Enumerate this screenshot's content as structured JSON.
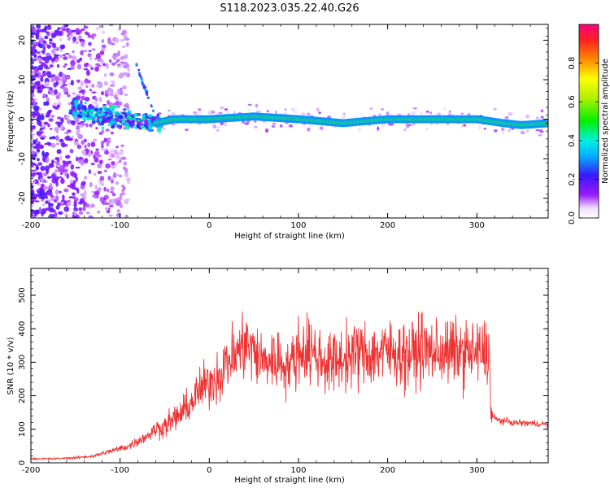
{
  "title": "S118.2023.035.22.40.G26",
  "chart_data": [
    {
      "type": "heatmap",
      "xlabel": "Height of straight line (km)",
      "ylabel": "Frequency (Hz)",
      "xlim": [
        -200,
        380
      ],
      "ylim": [
        -25,
        24
      ],
      "x_ticks": [
        -200,
        -100,
        0,
        100,
        200,
        300
      ],
      "y_ticks": [
        -20,
        -10,
        0,
        10,
        20
      ],
      "colorbar": {
        "label": "Normalized spectral amplitude",
        "range": [
          0.0,
          1.0
        ],
        "ticks": [
          0.0,
          0.2,
          0.4,
          0.6,
          0.8
        ],
        "tick_labels": [
          "0.0",
          "0.2",
          "0.4",
          "0.6",
          "0.8"
        ]
      },
      "ridge": {
        "x": [
          -150,
          -100,
          -60,
          -40,
          0,
          50,
          100,
          150,
          200,
          250,
          300,
          330,
          350,
          380
        ],
        "freq": [
          2.5,
          0.0,
          -1.0,
          0.0,
          0.0,
          0.7,
          0.0,
          -1.0,
          0.0,
          0.0,
          0.0,
          -1.0,
          -1.5,
          -1.0
        ]
      }
    },
    {
      "type": "line",
      "xlabel": "Height of straight line (km)",
      "ylabel": "SNR (10 * v/v)",
      "xlim": [
        -200,
        380
      ],
      "ylim": [
        0,
        580
      ],
      "x_ticks": [
        -200,
        -100,
        0,
        100,
        200,
        300
      ],
      "y_ticks": [
        0,
        100,
        200,
        300,
        400,
        500
      ],
      "series": [
        {
          "color": "#ee3333",
          "x": [
            -200,
            -175,
            -150,
            -130,
            -110,
            -90,
            -70,
            -60,
            -50,
            -40,
            -30,
            -20,
            -10,
            0,
            10,
            20,
            30,
            40,
            50,
            60,
            70,
            80,
            90,
            100,
            110,
            120,
            130,
            140,
            150,
            160,
            170,
            180,
            190,
            200,
            210,
            220,
            230,
            240,
            250,
            260,
            270,
            280,
            290,
            300,
            310,
            314,
            316,
            320,
            340,
            360,
            380
          ],
          "values": [
            12,
            12,
            15,
            20,
            35,
            50,
            80,
            100,
            110,
            130,
            150,
            180,
            220,
            240,
            260,
            300,
            320,
            360,
            330,
            300,
            310,
            300,
            290,
            330,
            340,
            320,
            300,
            300,
            310,
            320,
            330,
            320,
            330,
            330,
            330,
            320,
            330,
            340,
            330,
            330,
            330,
            330,
            330,
            325,
            330,
            320,
            150,
            130,
            120,
            118,
            115
          ]
        }
      ]
    }
  ]
}
